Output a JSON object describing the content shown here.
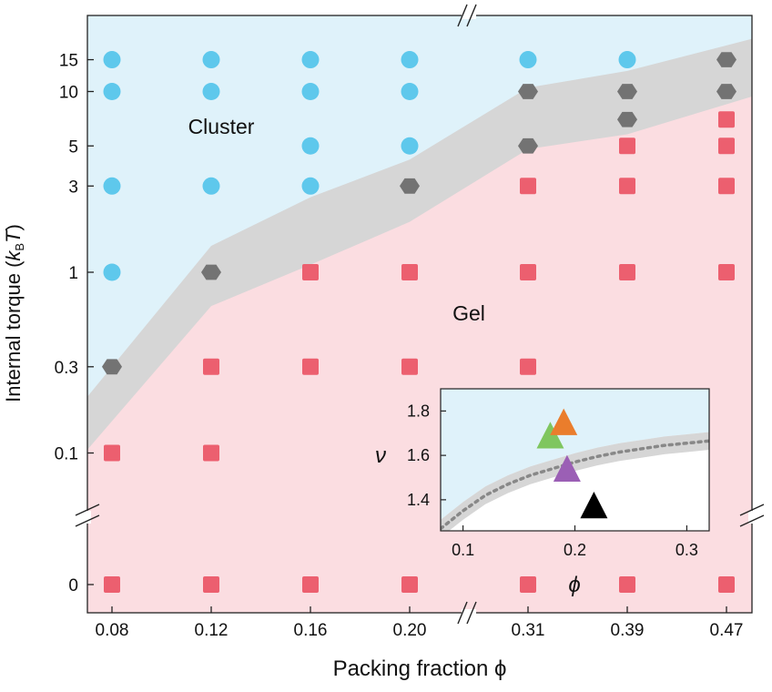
{
  "chart_data": [
    {
      "type": "scatter",
      "title": "",
      "xlabel": "Packing fraction ϕ",
      "ylabel": "Internal torque (k_BT)",
      "ylabel_parts": {
        "main": "Internal torque (",
        "k": "k",
        "sub": "B",
        "T": "T",
        "close": ")"
      },
      "x_tick_labels": [
        "0.08",
        "0.12",
        "0.16",
        "0.20",
        "0.31",
        "0.39",
        "0.47"
      ],
      "y_tick_labels": [
        "0",
        "0.1",
        "0.3",
        "1",
        "3",
        "5",
        "10",
        "15"
      ],
      "y_scale": "log (with broken axis to 0)",
      "axis_breaks": {
        "x": "between 0.20 and 0.31",
        "y": "between 0 and 0.1"
      },
      "region_labels": {
        "upper": "Cluster",
        "lower": "Gel"
      },
      "region_colors": {
        "cluster": "#dff2fa",
        "gel": "#fbdde1",
        "transition": "#d6d6d6"
      },
      "marker_colors": {
        "cluster": "#5ec8ec",
        "transition": "#737373",
        "gel": "#ec5f6f"
      },
      "series": [
        {
          "marker": "circle",
          "points": [
            [
              "0.08",
              "0.08",
              "0.08",
              "0.12",
              "0.12",
              "0.12",
              "0.16",
              "0.16",
              "0.16",
              "0.16",
              "0.20",
              "0.20",
              "0.20",
              "0.31",
              "0.39"
            ],
            [
              15,
              10,
              3,
              15,
              10,
              3,
              15,
              10,
              5,
              3,
              15,
              10,
              5,
              15,
              15
            ]
          ],
          "extra": {
            "x": [
              "0.08"
            ],
            "y": [
              1
            ]
          }
        },
        {
          "marker": "hexagon",
          "points": [
            [
              "0.08",
              "0.12",
              "0.20",
              "0.31",
              "0.31",
              "0.39",
              "0.39",
              "0.47",
              "0.47"
            ],
            [
              0.3,
              1,
              3,
              10,
              5,
              10,
              7,
              15,
              10
            ]
          ]
        },
        {
          "marker": "square",
          "points": [
            [
              "0.08",
              "0.08",
              "0.12",
              "0.12",
              "0.12",
              "0.16",
              "0.16",
              "0.16",
              "0.20",
              "0.20",
              "0.20",
              "0.31",
              "0.31",
              "0.31",
              "0.31",
              "0.39",
              "0.39",
              "0.39",
              "0.39",
              "0.47",
              "0.47",
              "0.47",
              "0.47",
              "0.47"
            ],
            [
              0.1,
              0,
              0.3,
              0.1,
              0,
              1,
              0.3,
              0,
              1,
              0.3,
              0,
              3,
              1,
              0.3,
              0,
              5,
              3,
              1,
              0,
              7,
              5,
              3,
              1,
              0
            ]
          ]
        }
      ],
      "boundaries": {
        "x": [
          "0.08",
          "0.12",
          "0.16",
          "0.20",
          "0.31",
          "0.39",
          "0.47"
        ],
        "upper": [
          0.3,
          1.4,
          2.6,
          4.2,
          10.5,
          13,
          18
        ],
        "lower": [
          0.15,
          0.65,
          1.1,
          1.9,
          4.8,
          5.8,
          8.5
        ]
      }
    },
    {
      "type": "scatter",
      "title": "",
      "xlabel": "ϕ",
      "ylabel": "ν",
      "x_tick_labels": [
        "0.1",
        "0.2",
        "0.3"
      ],
      "y_tick_labels": [
        "1.4",
        "1.6",
        "1.8"
      ],
      "xlim": [
        0.08,
        0.32
      ],
      "ylim": [
        1.26,
        1.9
      ],
      "grid": false,
      "region_colors": {
        "upper": "#dff2fa",
        "lower": "#ffffff",
        "band": "#d6d6d6"
      },
      "boundary_curve": {
        "x": [
          0.08,
          0.1,
          0.12,
          0.14,
          0.16,
          0.18,
          0.2,
          0.22,
          0.24,
          0.26,
          0.28,
          0.3,
          0.32
        ],
        "y": [
          1.27,
          1.35,
          1.42,
          1.47,
          1.51,
          1.54,
          1.57,
          1.595,
          1.615,
          1.63,
          1.645,
          1.655,
          1.665
        ],
        "band_halfwidth": 0.04
      },
      "markers": [
        {
          "x": 0.178,
          "y": 1.69,
          "color": "#7fc65f",
          "shape": "triangle"
        },
        {
          "x": 0.19,
          "y": 1.75,
          "color": "#ea7d2c",
          "shape": "triangle"
        },
        {
          "x": 0.193,
          "y": 1.54,
          "color": "#9b5fb5",
          "shape": "triangle"
        },
        {
          "x": 0.217,
          "y": 1.375,
          "color": "#000000",
          "shape": "triangle"
        }
      ]
    }
  ]
}
